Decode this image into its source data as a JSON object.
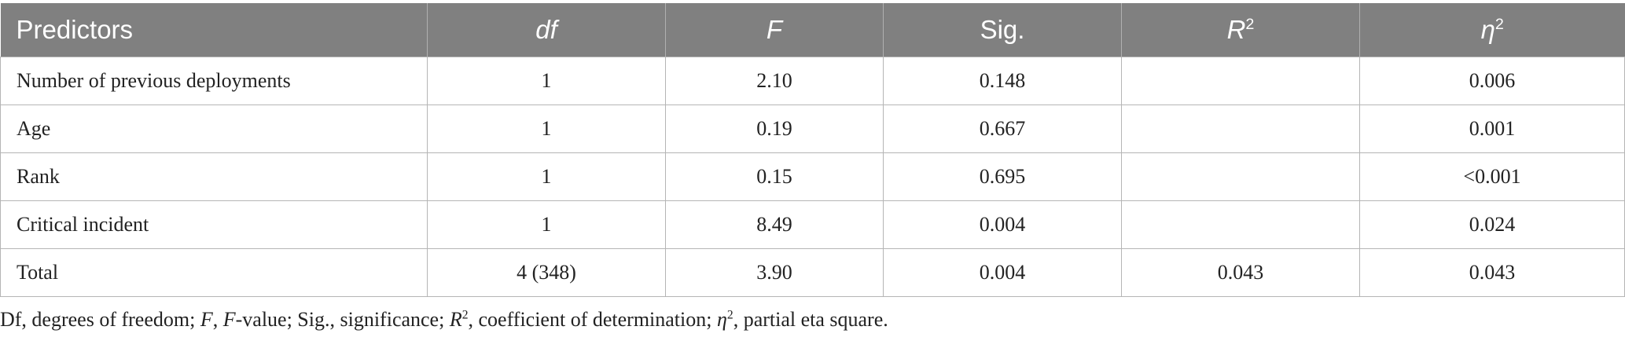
{
  "table": {
    "header": [
      {
        "text": "Predictors",
        "italic": false
      },
      {
        "text": "df",
        "italic": true
      },
      {
        "text": "F",
        "italic": true
      },
      {
        "text": "Sig.",
        "italic": false
      },
      {
        "text": "R",
        "sup": "2",
        "italic": true
      },
      {
        "text": "η",
        "sup": "2",
        "italic": true
      }
    ],
    "rows": [
      [
        "Number of previous deployments",
        "1",
        "2.10",
        "0.148",
        null,
        "0.006"
      ],
      [
        "Age",
        "1",
        "0.19",
        "0.667",
        null,
        "0.001"
      ],
      [
        "Rank",
        "1",
        "0.15",
        "0.695",
        null,
        "<0.001"
      ],
      [
        "Critical incident",
        "1",
        "8.49",
        "0.004",
        null,
        "0.024"
      ],
      [
        "Total",
        "4 (348)",
        "3.90",
        "0.004",
        "0.043",
        "0.043"
      ]
    ]
  },
  "footnote": [
    {
      "text": "Df, degrees of freedom; "
    },
    {
      "text": "F",
      "italic": true
    },
    {
      "text": ", "
    },
    {
      "text": "F",
      "italic": true
    },
    {
      "text": "-value; Sig., significance; "
    },
    {
      "text": "R",
      "italic": true
    },
    {
      "text": "2",
      "sup": true
    },
    {
      "text": ", coefficient of determination; "
    },
    {
      "text": "η",
      "italic": true
    },
    {
      "text": "2",
      "sup": true
    },
    {
      "text": ", partial eta square."
    }
  ]
}
